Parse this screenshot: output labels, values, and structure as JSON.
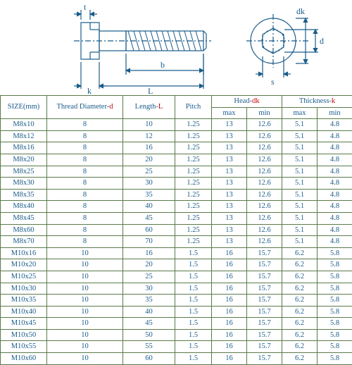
{
  "diagram": {
    "labels": {
      "t": "t",
      "d": "d",
      "dk": "dk",
      "k": "k",
      "L": "L",
      "b": "b",
      "s": "s"
    },
    "stroke": "#1a5c8a",
    "stroke_width": 1.2,
    "hatch_color": "#1a5c8a"
  },
  "table": {
    "header_color": "#1a5c8a",
    "accent_color": "#cc0000",
    "border_color": "#5a7a4a",
    "cell_text_color": "#1a5c8a",
    "columns": {
      "size": "SIZE(mm)",
      "thread_prefix": "Thread Diameter-",
      "thread_accent": "d",
      "length_prefix": "Length-",
      "length_accent": "L",
      "pitch": "Pitch",
      "head_prefix": "Head-",
      "head_accent": "dk",
      "thickness_prefix": "Thickness-",
      "thickness_accent": "k",
      "max": "max",
      "min": "min"
    },
    "rows": [
      {
        "size": "M8x10",
        "d": "8",
        "L": "10",
        "pitch": "1.25",
        "hmax": "13",
        "hmin": "12.6",
        "tmax": "5.1",
        "tmin": "4.8"
      },
      {
        "size": "M8x12",
        "d": "8",
        "L": "12",
        "pitch": "1.25",
        "hmax": "13",
        "hmin": "12.6",
        "tmax": "5.1",
        "tmin": "4.8"
      },
      {
        "size": "M8x16",
        "d": "8",
        "L": "16",
        "pitch": "1.25",
        "hmax": "13",
        "hmin": "12.6",
        "tmax": "5.1",
        "tmin": "4.8"
      },
      {
        "size": "M8x20",
        "d": "8",
        "L": "20",
        "pitch": "1.25",
        "hmax": "13",
        "hmin": "12.6",
        "tmax": "5.1",
        "tmin": "4.8"
      },
      {
        "size": "M8x25",
        "d": "8",
        "L": "25",
        "pitch": "1.25",
        "hmax": "13",
        "hmin": "12.6",
        "tmax": "5.1",
        "tmin": "4.8"
      },
      {
        "size": "M8x30",
        "d": "8",
        "L": "30",
        "pitch": "1.25",
        "hmax": "13",
        "hmin": "12.6",
        "tmax": "5.1",
        "tmin": "4.8"
      },
      {
        "size": "M8x35",
        "d": "8",
        "L": "35",
        "pitch": "1.25",
        "hmax": "13",
        "hmin": "12.6",
        "tmax": "5.1",
        "tmin": "4.8"
      },
      {
        "size": "M8x40",
        "d": "8",
        "L": "40",
        "pitch": "1.25",
        "hmax": "13",
        "hmin": "12.6",
        "tmax": "5.1",
        "tmin": "4.8"
      },
      {
        "size": "M8x45",
        "d": "8",
        "L": "45",
        "pitch": "1.25",
        "hmax": "13",
        "hmin": "12.6",
        "tmax": "5.1",
        "tmin": "4.8"
      },
      {
        "size": "M8x60",
        "d": "8",
        "L": "60",
        "pitch": "1.25",
        "hmax": "13",
        "hmin": "12.6",
        "tmax": "5.1",
        "tmin": "4.8"
      },
      {
        "size": "M8x70",
        "d": "8",
        "L": "70",
        "pitch": "1.25",
        "hmax": "13",
        "hmin": "12.6",
        "tmax": "5.1",
        "tmin": "4.8"
      },
      {
        "size": "M10x16",
        "d": "10",
        "L": "16",
        "pitch": "1.5",
        "hmax": "16",
        "hmin": "15.7",
        "tmax": "6.2",
        "tmin": "5.8"
      },
      {
        "size": "M10x20",
        "d": "10",
        "L": "20",
        "pitch": "1.5",
        "hmax": "16",
        "hmin": "15.7",
        "tmax": "6.2",
        "tmin": "5.8"
      },
      {
        "size": "M10x25",
        "d": "10",
        "L": "25",
        "pitch": "1.5",
        "hmax": "16",
        "hmin": "15.7",
        "tmax": "6.2",
        "tmin": "5.8"
      },
      {
        "size": "M10x30",
        "d": "10",
        "L": "30",
        "pitch": "1.5",
        "hmax": "16",
        "hmin": "15.7",
        "tmax": "6.2",
        "tmin": "5.8"
      },
      {
        "size": "M10x35",
        "d": "10",
        "L": "35",
        "pitch": "1.5",
        "hmax": "16",
        "hmin": "15.7",
        "tmax": "6.2",
        "tmin": "5.8"
      },
      {
        "size": "M10x40",
        "d": "10",
        "L": "40",
        "pitch": "1.5",
        "hmax": "16",
        "hmin": "15.7",
        "tmax": "6.2",
        "tmin": "5.8"
      },
      {
        "size": "M10x45",
        "d": "10",
        "L": "45",
        "pitch": "1.5",
        "hmax": "16",
        "hmin": "15.7",
        "tmax": "6.2",
        "tmin": "5.8"
      },
      {
        "size": "M10x50",
        "d": "10",
        "L": "50",
        "pitch": "1.5",
        "hmax": "16",
        "hmin": "15.7",
        "tmax": "6.2",
        "tmin": "5.8"
      },
      {
        "size": "M10x55",
        "d": "10",
        "L": "55",
        "pitch": "1.5",
        "hmax": "16",
        "hmin": "15.7",
        "tmax": "6.2",
        "tmin": "5.8"
      },
      {
        "size": "M10x60",
        "d": "10",
        "L": "60",
        "pitch": "1.5",
        "hmax": "16",
        "hmin": "15.7",
        "tmax": "6.2",
        "tmin": "5.8"
      }
    ]
  }
}
